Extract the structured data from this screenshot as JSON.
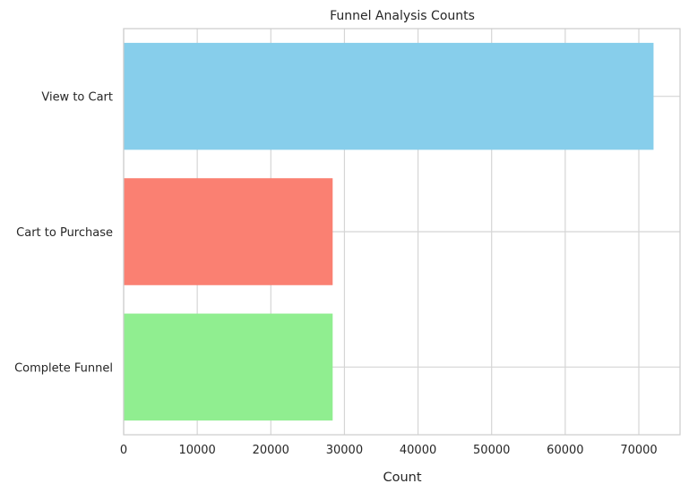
{
  "chart_data": {
    "type": "bar",
    "orientation": "horizontal",
    "title": "Funnel Analysis Counts",
    "xlabel": "Count",
    "ylabel": "",
    "categories": [
      "View to Cart",
      "Cart to Purchase",
      "Complete Funnel"
    ],
    "values": [
      72000,
      28400,
      28400
    ],
    "colors": [
      "#87ceeb",
      "#fa8072",
      "#90ee90"
    ],
    "xlim": [
      0,
      75600
    ],
    "xticks": [
      0,
      10000,
      20000,
      30000,
      40000,
      50000,
      60000,
      70000
    ],
    "grid": true,
    "legend": "none"
  }
}
